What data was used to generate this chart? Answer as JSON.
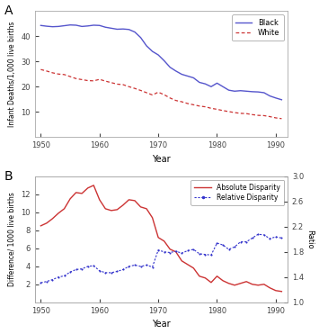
{
  "panel_A": {
    "title": "A",
    "years": [
      1950,
      1951,
      1952,
      1953,
      1954,
      1955,
      1956,
      1957,
      1958,
      1959,
      1960,
      1961,
      1962,
      1963,
      1964,
      1965,
      1966,
      1967,
      1968,
      1969,
      1970,
      1971,
      1972,
      1973,
      1974,
      1975,
      1976,
      1977,
      1978,
      1979,
      1980,
      1981,
      1982,
      1983,
      1984,
      1985,
      1986,
      1987,
      1988,
      1989,
      1990,
      1991
    ],
    "black": [
      44.3,
      44.0,
      43.8,
      43.9,
      44.2,
      44.5,
      44.4,
      43.9,
      44.1,
      44.4,
      44.3,
      43.6,
      43.2,
      42.8,
      42.9,
      42.7,
      41.7,
      39.5,
      36.2,
      34.0,
      32.6,
      30.3,
      27.7,
      26.2,
      24.9,
      24.2,
      23.5,
      21.7,
      21.1,
      20.0,
      21.4,
      20.0,
      18.6,
      18.2,
      18.4,
      18.2,
      18.0,
      17.9,
      17.6,
      16.3,
      15.5,
      14.8
    ],
    "white": [
      26.8,
      26.2,
      25.5,
      25.0,
      24.8,
      24.0,
      23.2,
      22.8,
      22.4,
      22.3,
      22.9,
      22.2,
      21.6,
      21.0,
      20.8,
      20.0,
      19.3,
      18.5,
      17.6,
      16.7,
      17.8,
      16.8,
      15.5,
      14.5,
      14.0,
      13.3,
      12.8,
      12.3,
      12.0,
      11.4,
      11.0,
      10.5,
      10.1,
      9.7,
      9.4,
      9.3,
      8.9,
      8.6,
      8.5,
      8.1,
      7.6,
      7.3
    ],
    "ylabel": "Infant Deaths/1,000 live births",
    "xlabel": "Year",
    "ylim": [
      0,
      50
    ],
    "yticks": [
      10,
      20,
      30,
      40
    ],
    "xticks": [
      1950,
      1960,
      1970,
      1980,
      1990
    ],
    "black_color": "#5555cc",
    "white_color": "#cc3333",
    "legend_labels": [
      "Black",
      "White"
    ]
  },
  "panel_B": {
    "title": "B",
    "years": [
      1950,
      1951,
      1952,
      1953,
      1954,
      1955,
      1956,
      1957,
      1958,
      1959,
      1960,
      1961,
      1962,
      1963,
      1964,
      1965,
      1966,
      1967,
      1968,
      1969,
      1970,
      1971,
      1972,
      1973,
      1974,
      1975,
      1976,
      1977,
      1978,
      1979,
      1980,
      1981,
      1982,
      1983,
      1984,
      1985,
      1986,
      1987,
      1988,
      1989,
      1990,
      1991
    ],
    "absolute": [
      8.5,
      8.8,
      9.3,
      9.9,
      10.4,
      11.5,
      12.2,
      12.1,
      12.7,
      13.0,
      11.4,
      10.4,
      10.2,
      10.3,
      10.8,
      11.4,
      11.3,
      10.6,
      10.4,
      9.4,
      7.2,
      6.8,
      5.9,
      5.6,
      4.6,
      4.2,
      3.8,
      2.9,
      2.7,
      2.2,
      2.9,
      2.4,
      2.1,
      1.9,
      2.1,
      2.3,
      2.0,
      1.9,
      2.0,
      1.6,
      1.3,
      1.2
    ],
    "relative": [
      1.31,
      1.33,
      1.36,
      1.4,
      1.42,
      1.48,
      1.52,
      1.53,
      1.57,
      1.58,
      1.5,
      1.47,
      1.47,
      1.49,
      1.52,
      1.57,
      1.59,
      1.57,
      1.59,
      1.56,
      1.83,
      1.8,
      1.79,
      1.81,
      1.78,
      1.82,
      1.84,
      1.77,
      1.76,
      1.75,
      1.94,
      1.91,
      1.84,
      1.88,
      1.96,
      1.96,
      2.02,
      2.08,
      2.07,
      2.01,
      2.04,
      2.02
    ],
    "ylabel_left": "Difference/ 1000 live births",
    "ylabel_right": "Ratio",
    "xlabel": "Year",
    "ylim_left": [
      0,
      14
    ],
    "ylim_right": [
      1.0,
      3.0
    ],
    "yticks_left": [
      2,
      4,
      6,
      8,
      10,
      12
    ],
    "yticks_right": [
      1.0,
      1.4,
      1.8,
      2.2,
      2.6,
      3.0
    ],
    "xticks": [
      1950,
      1960,
      1970,
      1980,
      1990
    ],
    "abs_color": "#cc3333",
    "rel_color": "#3333cc",
    "legend_labels": [
      "Absolute Disparity",
      "Relative Disparity"
    ]
  }
}
